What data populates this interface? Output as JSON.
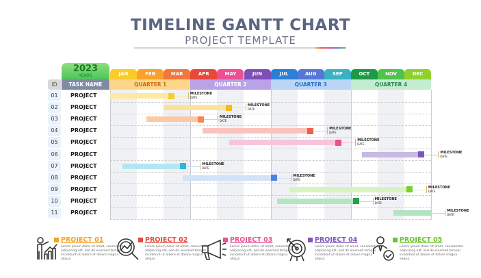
{
  "header": {
    "title": "TIMELINE GANTT CHART",
    "subtitle": "PROJECT TEMPLATE"
  },
  "chart_data": {
    "type": "gantt",
    "year": "2023",
    "year_label": "YEARS",
    "id_header": "ID",
    "task_header": "TASK NAME",
    "months": [
      "JAN",
      "FEB",
      "MAR",
      "APR",
      "MAY",
      "JUN",
      "JUL",
      "AUG",
      "SEP",
      "OCT",
      "NOV",
      "DEC"
    ],
    "month_colors": [
      "#fbcb2b",
      "#f9a12a",
      "#f2773a",
      "#e8473a",
      "#ec4f93",
      "#7d4fb8",
      "#2d7fd6",
      "#5578d8",
      "#38b2c4",
      "#1d9a48",
      "#4fc34a",
      "#8fd12c"
    ],
    "quarters": [
      {
        "label": "QUARTER 1",
        "bg": "#fdd68a",
        "color": "#c96f12"
      },
      {
        "label": "QUARTER 2",
        "bg": "#b9a2e6",
        "color": "#ffffff"
      },
      {
        "label": "QUARTER 3",
        "bg": "#bad6f6",
        "color": "#2b6fc8"
      },
      {
        "label": "QUARTER 4",
        "bg": "#c3ecd0",
        "color": "#2a8a4c"
      }
    ],
    "tasks": [
      {
        "id": "01",
        "name": "PROJECT",
        "start_month": 0,
        "end_month": 2.4,
        "color": "#f7cf2a",
        "light": "#fde9a2",
        "milestone": "MILESTONE",
        "milestone_sub": "DATE"
      },
      {
        "id": "02",
        "name": "PROJECT",
        "start_month": 2.0,
        "end_month": 4.55,
        "color": "#f7b81e",
        "light": "#fde19a",
        "milestone": "MILESTONE",
        "milestone_sub": "DATE"
      },
      {
        "id": "03",
        "name": "PROJECT",
        "start_month": 1.35,
        "end_month": 3.5,
        "color": "#f4884a",
        "light": "#fdc8a8",
        "milestone": "MILESTONE",
        "milestone_sub": "DATE"
      },
      {
        "id": "04",
        "name": "PROJECT",
        "start_month": 3.45,
        "end_month": 7.6,
        "color": "#ec5e4e",
        "light": "#fac3bd",
        "milestone": "MILESTONE",
        "milestone_sub": "DATE"
      },
      {
        "id": "05",
        "name": "PROJECT",
        "start_month": 4.45,
        "end_month": 8.65,
        "color": "#e9518f",
        "light": "#f8c4dc",
        "milestone": "MILESTONE",
        "milestone_sub": "DATE"
      },
      {
        "id": "06",
        "name": "PROJECT",
        "start_month": 9.4,
        "end_month": 11.75,
        "color": "#7e55bb",
        "light": "#c9b9e4",
        "milestone": "MILESTONE",
        "milestone_sub": "DATE"
      },
      {
        "id": "07",
        "name": "PROJECT",
        "start_month": 0.45,
        "end_month": 2.85,
        "color": "#2fb8d6",
        "light": "#b4e6f2",
        "milestone": "MILESTONE",
        "milestone_sub": "DATE"
      },
      {
        "id": "08",
        "name": "PROJECT",
        "start_month": 2.7,
        "end_month": 6.25,
        "color": "#4a86e0",
        "light": "#d2e2f8",
        "milestone": "MILESTONE",
        "milestone_sub": "DATE"
      },
      {
        "id": "09",
        "name": "PROJECT",
        "start_month": 6.7,
        "end_month": 11.3,
        "color": "#7bcf2c",
        "light": "#d7f3c0",
        "milestone": "MILESTONE",
        "milestone_sub": "DATE"
      },
      {
        "id": "10",
        "name": "PROJECT",
        "start_month": 6.25,
        "end_month": 9.3,
        "color": "#22a34b",
        "light": "#b6e5c4",
        "milestone": "MILESTONE",
        "milestone_sub": "DATE"
      },
      {
        "id": "11",
        "name": "PROJECT",
        "start_month": 10.6,
        "end_month": 12,
        "color": "#b3e2c4",
        "light": "#b3e2c4",
        "milestone": "MILESTONE",
        "milestone_sub": "DATE"
      }
    ]
  },
  "legend": [
    {
      "title": "PROJECT 01",
      "color": "#f7a21b",
      "icon": "person-growth-icon",
      "text": "Lorem ipsum dolor sit amet, consectetur adipiscing elit, sed do eiusmod tempor incididunt ut labore et dolore magna aliqua."
    },
    {
      "title": "PROJECT 02",
      "color": "#e8473a",
      "icon": "magnifier-chart-icon",
      "text": "Lorem ipsum dolor sit amet, consectetur adipiscing elit, sed do eiusmod tempor incididunt ut labore et dolore magna aliqua."
    },
    {
      "title": "PROJECT 03",
      "color": "#ec4f93",
      "icon": "megaphone-icon",
      "text": "Lorem ipsum dolor sit amet, consectetur adipiscing elit, sed do eiusmod tempor incididunt ut labore et dolore magna aliqua."
    },
    {
      "title": "PROJECT 04",
      "color": "#7d55bb",
      "icon": "target-icon",
      "text": "Lorem ipsum dolor sit amet, consectetur adipiscing elit, sed do eiusmod tempor incididunt ut labore et dolore magna aliqua."
    },
    {
      "title": "PROJECT 05",
      "color": "#6cc62a",
      "icon": "person-check-icon",
      "text": "Lorem ipsum dolor sit amet, consectetur adipiscing elit, sed do eiusmod tempor incididunt ut labore et dolore magna aliqua."
    }
  ]
}
